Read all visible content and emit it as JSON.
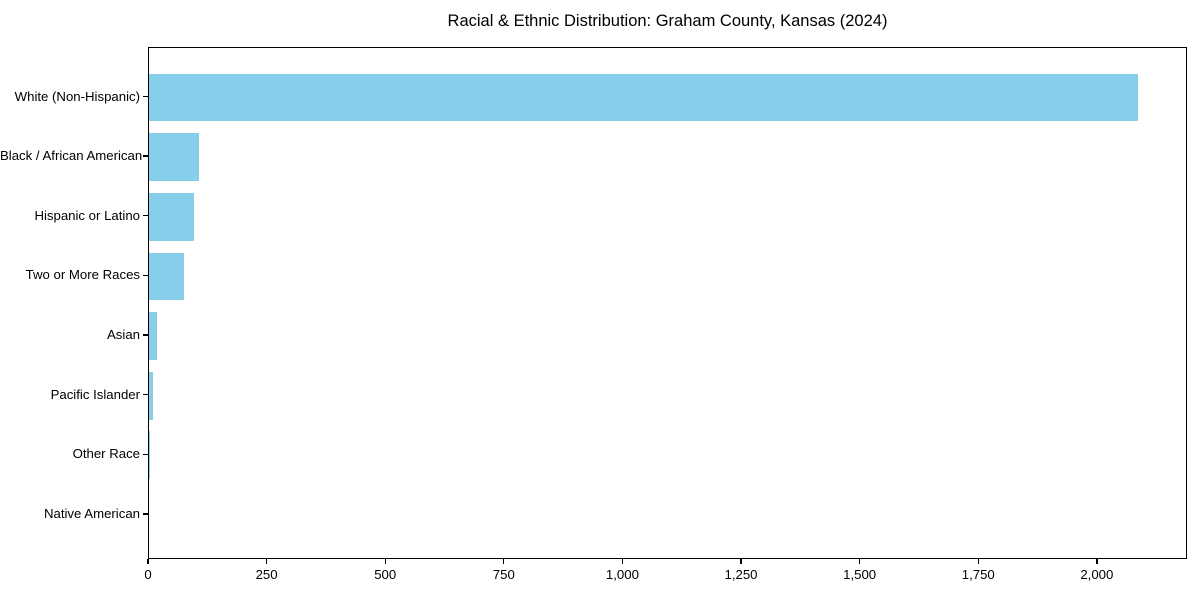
{
  "figure": {
    "background": "#ffffff",
    "text_color": "#000000",
    "spine_color": "#000000"
  },
  "chart_data": {
    "type": "bar",
    "orientation": "horizontal",
    "title": "Racial & Ethnic Distribution: Graham County, Kansas (2024)",
    "categories": [
      "White (Non-Hispanic)",
      "Black / African American",
      "Hispanic or Latino",
      "Two or More Races",
      "Asian",
      "Pacific Islander",
      "Other Race",
      "Native American"
    ],
    "values": [
      2085,
      106,
      94,
      74,
      16,
      8,
      1,
      0
    ],
    "bar_color": "#87CEEB",
    "xlabel": "",
    "ylabel": "",
    "xlim": [
      0,
      2190
    ],
    "x_ticks": [
      0,
      250,
      500,
      750,
      1000,
      1250,
      1500,
      1750,
      2000
    ],
    "x_tick_labels": [
      "0",
      "250",
      "500",
      "750",
      "1,000",
      "1,250",
      "1,500",
      "1,750",
      "2,000"
    ],
    "grid": false,
    "legend": "none"
  }
}
